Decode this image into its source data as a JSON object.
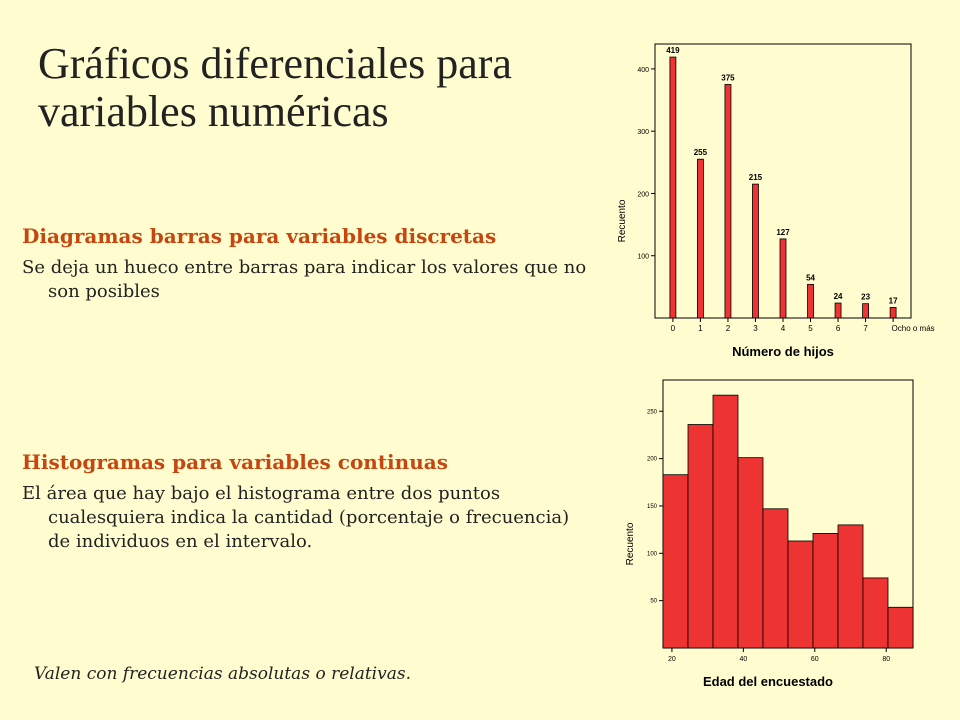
{
  "slide": {
    "title": "Gráficos diferenciales para variables numéricas",
    "bar_section": {
      "heading": "Diagramas barras para variables discretas",
      "text": "Se deja un hueco entre barras para indicar los valores que no son posibles"
    },
    "hist_section": {
      "heading": "Histogramas para variables continuas",
      "text": "El área que hay bajo el histograma entre dos puntos cualesquiera indica la cantidad (porcentaje o frecuencia) de individuos en el intervalo."
    },
    "note": "Valen con frecuencias absolutas o relativas."
  },
  "chart_data": [
    {
      "type": "bar",
      "title": "",
      "xlabel": "Número de hijos",
      "ylabel": "Recuento",
      "categories": [
        "0",
        "1",
        "2",
        "3",
        "4",
        "5",
        "6",
        "7",
        "Ocho o más"
      ],
      "values": [
        419,
        255,
        375,
        215,
        127,
        54,
        24,
        23,
        17
      ],
      "data_labels": [
        "419",
        "255",
        "375",
        "215",
        "127",
        "54",
        "24",
        "23",
        "17"
      ],
      "ylim": [
        0,
        440
      ],
      "yticks": [
        100,
        200,
        300,
        400
      ],
      "bar_color": "#ee3333"
    },
    {
      "type": "bar",
      "title": "",
      "xlabel": "Edad del encuestado",
      "ylabel": "Recuento",
      "bin_edges": [
        17.5,
        24.5,
        31.5,
        38.5,
        45.5,
        52.5,
        59.5,
        66.5,
        73.5,
        80.5,
        87.5
      ],
      "values": [
        183,
        236,
        267,
        201,
        147,
        113,
        121,
        130,
        74,
        43
      ],
      "xlim": [
        17.5,
        87.5
      ],
      "xticks": [
        20,
        40,
        60,
        80
      ],
      "ylim": [
        0,
        283
      ],
      "yticks": [
        50,
        100,
        150,
        200,
        250
      ],
      "bar_color": "#ee3333"
    }
  ]
}
